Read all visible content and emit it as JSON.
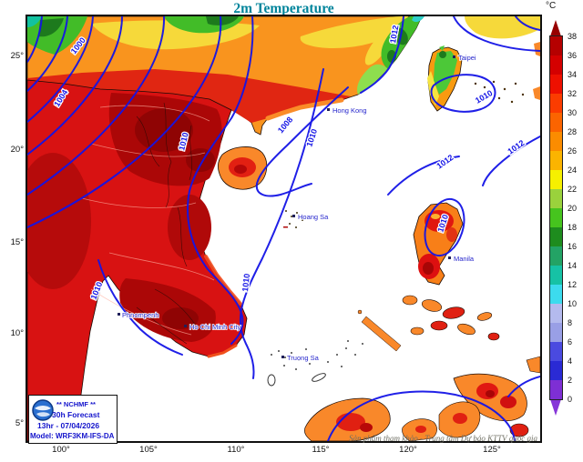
{
  "title": "2m Temperature",
  "colorbar": {
    "unit": "°C",
    "ticks": [
      "38",
      "36",
      "34",
      "32",
      "30",
      "28",
      "26",
      "24",
      "22",
      "20",
      "18",
      "16",
      "14",
      "12",
      "10",
      "8",
      "6",
      "4",
      "2",
      "0"
    ],
    "cell_colors_top_to_bottom": [
      "#b50000",
      "#d40000",
      "#ee1000",
      "#fb3c00",
      "#fb6400",
      "#fb8c00",
      "#fbb400",
      "#f6f000",
      "#9ad23c",
      "#46c41e",
      "#1e8c1e",
      "#23a365",
      "#16c2a5",
      "#3cdbee",
      "#b4baee",
      "#999fe6",
      "#4a4ae0",
      "#2a2ad4",
      "#7e2fd4"
    ],
    "arrow_top_color": "#970000",
    "arrow_bottom_color": "#8636d8"
  },
  "axes": {
    "lat": [
      "25°",
      "20°",
      "15°",
      "10°",
      "5°"
    ],
    "lon": [
      "100°",
      "105°",
      "110°",
      "115°",
      "120°",
      "125°"
    ]
  },
  "legend": {
    "org_line": "** NCHMF **",
    "forecast_line": "30h Forecast",
    "valid_line": "13hr - 07/04/2026",
    "model_line": "Model: WRF3KM-IFS-DA"
  },
  "footer": "Sản phẩm tham khảo - Trung tâm Dự báo KTTV quốc gia",
  "map": {
    "isobar_labels": [
      {
        "text": "1000"
      },
      {
        "text": "1004"
      },
      {
        "text": "1008"
      },
      {
        "text": "1010"
      },
      {
        "text": "1010"
      },
      {
        "text": "1010"
      },
      {
        "text": "1010"
      },
      {
        "text": "1010"
      },
      {
        "text": "1010"
      },
      {
        "text": "1012"
      },
      {
        "text": "1012"
      },
      {
        "text": "1012"
      }
    ],
    "cities": [
      {
        "name": "Taipei"
      },
      {
        "name": "Hong Kong"
      },
      {
        "name": "Hoang Sa"
      },
      {
        "name": "Truong Sa"
      },
      {
        "name": "Ho Chi Minh City"
      },
      {
        "name": "Phnompenh"
      },
      {
        "name": "Manila"
      }
    ],
    "line_color": "#1414e6",
    "city_color": "#2525cc"
  }
}
